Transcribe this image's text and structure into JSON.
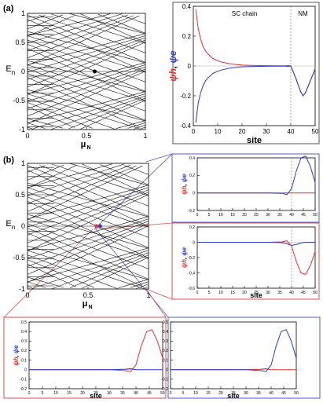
{
  "figure": {
    "panel_a_label": "(a)",
    "panel_b_label": "(b)"
  },
  "colors": {
    "hole": "#e8312a",
    "electron": "#2b3bd1",
    "spectrum": "#111111",
    "frame_red": "#d9534f",
    "frame_blue": "#4f5bd5",
    "frame_gray": "#555555"
  },
  "chart_data": [
    {
      "id": "a-spectrum",
      "type": "line",
      "description_in_image": "energy spectrum vs chemical potential",
      "xlabel": "μN",
      "ylabel": "En",
      "xlim": [
        0,
        1
      ],
      "ylim": [
        -1,
        1
      ],
      "xticks": [
        "0",
        "0.5",
        "1"
      ],
      "yticks": [
        "-1",
        "-0.5",
        "0",
        "0.5",
        "1"
      ],
      "highlight_point": {
        "x": 0.57,
        "y": 0.0
      },
      "levels": 40
    },
    {
      "id": "a-wavefunction",
      "type": "line",
      "xlabel": "site",
      "ylabel_h": "ψh",
      "ylabel_e": "ψe",
      "xlim": [
        0,
        50
      ],
      "ylim": [
        -0.4,
        0.4
      ],
      "xticks": [
        "0",
        "10",
        "20",
        "30",
        "40",
        "50"
      ],
      "yticks": [
        "-0.4",
        "-0.2",
        "0",
        "0.2",
        "0.4"
      ],
      "annotations": [
        "SC chain",
        "NM"
      ],
      "boundary_x": 40,
      "series": [
        {
          "name": "ψh",
          "x": [
            1,
            2,
            3,
            4,
            5,
            6,
            8,
            10,
            12,
            15,
            20,
            25,
            30,
            35,
            38,
            39,
            40,
            42,
            44,
            45,
            46,
            48,
            50
          ],
          "values": [
            0.38,
            0.25,
            0.18,
            0.13,
            0.1,
            0.08,
            0.05,
            0.035,
            0.025,
            0.014,
            0.006,
            0.003,
            0.002,
            0.001,
            0.001,
            0.003,
            0.0,
            -0.08,
            -0.17,
            -0.2,
            -0.18,
            -0.1,
            -0.02
          ]
        },
        {
          "name": "ψe",
          "x": [
            1,
            2,
            3,
            4,
            5,
            6,
            8,
            10,
            12,
            15,
            20,
            25,
            30,
            35,
            38,
            39,
            40,
            42,
            44,
            45,
            46,
            48,
            50
          ],
          "values": [
            -0.38,
            -0.25,
            -0.18,
            -0.13,
            -0.1,
            -0.08,
            -0.05,
            -0.035,
            -0.025,
            -0.014,
            -0.006,
            -0.003,
            -0.002,
            -0.001,
            -0.001,
            -0.003,
            0.0,
            -0.08,
            -0.17,
            -0.2,
            -0.18,
            -0.1,
            -0.02
          ]
        }
      ]
    },
    {
      "id": "b-spectrum",
      "type": "line",
      "xlabel": "μN",
      "ylabel": "En",
      "xlim": [
        0,
        1
      ],
      "ylim": [
        -1,
        1
      ],
      "xticks": [
        "0",
        "0.5",
        "1"
      ],
      "yticks": [
        "-1",
        "-0.5",
        "0",
        "0.5",
        "1"
      ],
      "highlight_points": [
        {
          "x": 0.57,
          "y": 0.0,
          "color": "red"
        },
        {
          "x": 0.6,
          "y": 0.0,
          "color": "blue"
        }
      ]
    },
    {
      "id": "b-top-right",
      "type": "line",
      "xlabel": "",
      "ylabel_h": "ψh",
      "ylabel_e": "ψe",
      "xlim": [
        0,
        50
      ],
      "ylim": [
        -0.2,
        0.4
      ],
      "xticks": [
        "0",
        "5",
        "10",
        "15",
        "20",
        "25",
        "30",
        "35",
        "40",
        "45",
        "50"
      ],
      "yticks": [
        "-0.2",
        "0",
        "0.2",
        "0.4"
      ],
      "boundary_x": 40,
      "series": [
        {
          "name": "ψh",
          "x": [
            0,
            10,
            20,
            30,
            38,
            40,
            42,
            44,
            46,
            48,
            50
          ],
          "values": [
            0,
            0,
            0,
            0,
            0,
            0,
            0,
            0,
            0,
            0,
            0
          ]
        },
        {
          "name": "ψe",
          "x": [
            0,
            10,
            20,
            30,
            36,
            38,
            40,
            42,
            44,
            46,
            48,
            50
          ],
          "values": [
            0,
            0,
            0,
            0,
            -0.005,
            -0.02,
            0.05,
            0.25,
            0.4,
            0.42,
            0.3,
            0.12
          ]
        }
      ]
    },
    {
      "id": "b-mid-right",
      "type": "line",
      "xlabel": "site",
      "ylabel_h": "ψh",
      "ylabel_e": "ψe",
      "xlim": [
        0,
        50
      ],
      "ylim": [
        -0.6,
        0.2
      ],
      "xticks": [
        "0",
        "5",
        "10",
        "15",
        "20",
        "25",
        "30",
        "35",
        "40",
        "45",
        "50"
      ],
      "yticks": [
        "-0.6",
        "-0.4",
        "-0.2",
        "0",
        "0.2"
      ],
      "boundary_x": 40,
      "series": [
        {
          "name": "ψh",
          "x": [
            0,
            10,
            20,
            30,
            36,
            38,
            40,
            42,
            44,
            46,
            48,
            50
          ],
          "values": [
            0,
            0,
            0,
            0,
            0.005,
            0.02,
            -0.05,
            -0.25,
            -0.4,
            -0.42,
            -0.3,
            -0.12
          ]
        },
        {
          "name": "ψe",
          "x": [
            0,
            10,
            20,
            30,
            36,
            38,
            40,
            42,
            44,
            46,
            48,
            50
          ],
          "values": [
            0,
            0,
            0,
            0,
            -0.005,
            -0.02,
            -0.04,
            -0.03,
            -0.01,
            0,
            0,
            0
          ]
        }
      ]
    },
    {
      "id": "b-bottom-left",
      "type": "line",
      "xlabel": "site",
      "ylabel_h": "ψh",
      "ylabel_e": "ψe",
      "xlim": [
        0,
        50
      ],
      "ylim": [
        -0.2,
        0.5
      ],
      "xticks": [
        "0",
        "5",
        "10",
        "15",
        "20",
        "25",
        "30",
        "35",
        "40",
        "45",
        "50"
      ],
      "yticks": [
        "-0.2",
        "-0.1",
        "0",
        "0.1",
        "0.2",
        "0.3",
        "0.4",
        "0.5"
      ],
      "series": [
        {
          "name": "ψh",
          "x": [
            0,
            10,
            20,
            30,
            36,
            38,
            40,
            42,
            44,
            46,
            48,
            50
          ],
          "values": [
            0,
            0,
            0,
            0,
            -0.01,
            -0.02,
            0.05,
            0.25,
            0.4,
            0.42,
            0.3,
            0.12
          ]
        },
        {
          "name": "ψe",
          "x": [
            0,
            10,
            20,
            30,
            36,
            38,
            40,
            42,
            44,
            46,
            48,
            50
          ],
          "values": [
            0,
            0,
            0,
            0,
            0.005,
            0.01,
            0,
            0,
            0,
            0,
            0,
            0
          ]
        }
      ]
    },
    {
      "id": "b-bottom-right",
      "type": "line",
      "xlabel": "site",
      "ylabel_h": "",
      "ylabel_e": "",
      "xlim": [
        0,
        50
      ],
      "ylim": [
        -0.2,
        0.5
      ],
      "xticks": [
        "0",
        "5",
        "10",
        "15",
        "20",
        "25",
        "30",
        "35",
        "40",
        "45",
        "50"
      ],
      "yticks": [
        "-0.2",
        "-0.1",
        "0",
        "0.1",
        "0.2",
        "0.3",
        "0.4",
        "0.5"
      ],
      "series": [
        {
          "name": "ψh",
          "x": [
            0,
            10,
            20,
            30,
            36,
            38,
            40,
            42,
            44,
            46,
            48,
            50
          ],
          "values": [
            0,
            0,
            0,
            0,
            0.005,
            0.01,
            0,
            0,
            0,
            0,
            0,
            0
          ]
        },
        {
          "name": "ψe",
          "x": [
            0,
            10,
            20,
            30,
            36,
            38,
            40,
            42,
            44,
            46,
            48,
            50
          ],
          "values": [
            0,
            0,
            0,
            0,
            -0.01,
            -0.02,
            0.05,
            0.25,
            0.4,
            0.42,
            0.3,
            0.12
          ]
        }
      ]
    }
  ]
}
